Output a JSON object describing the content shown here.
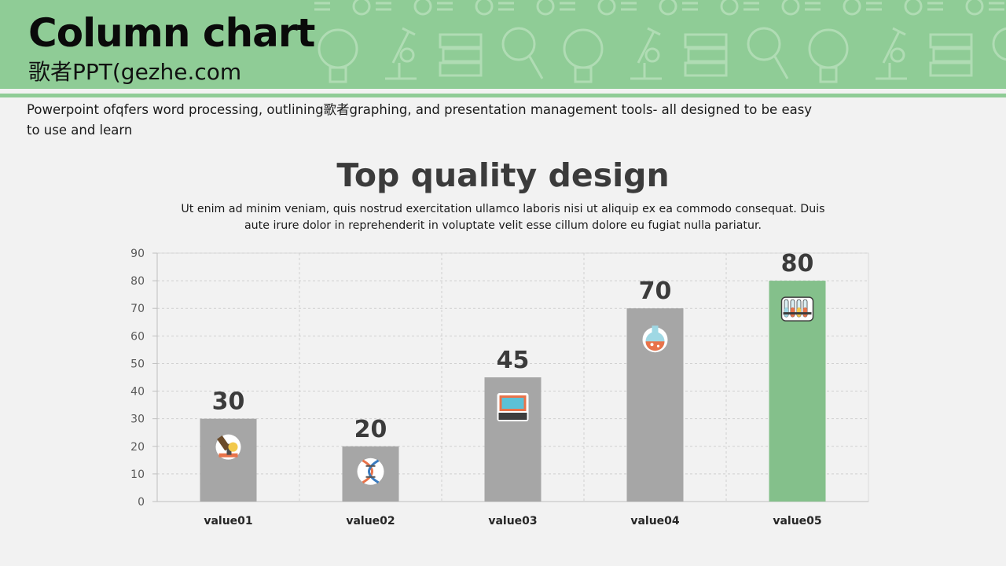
{
  "slide": {
    "title": "Column chart",
    "subtitle": "歌者PPT(gezhe.com",
    "intro": "Powerpoint ofqfers word processing, outlining歌者graphing, and presentation management tools- all designed to be easy to use and learn"
  },
  "colors": {
    "banner": "#8fcc96",
    "bar_default": "#a6a6a6",
    "bar_highlight": "#84c08b",
    "background": "#f2f2f2"
  },
  "chart_data": {
    "type": "bar",
    "title": "Top quality design",
    "subtitle": "Ut enim ad minim veniam, quis nostrud exercitation ullamco laboris nisi ut aliquip ex ea commodo consequat. Duis aute irure dolor in reprehenderit in voluptate velit esse cillum dolore eu fugiat nulla pariatur.",
    "categories": [
      "value01",
      "value02",
      "value03",
      "value04",
      "value05"
    ],
    "values": [
      30,
      20,
      45,
      70,
      80
    ],
    "data_labels": [
      "30",
      "20",
      "45",
      "70",
      "80"
    ],
    "ylim": [
      0,
      90
    ],
    "yticks": [
      "0",
      "10",
      "20",
      "30",
      "40",
      "50",
      "60",
      "70",
      "80",
      "90"
    ],
    "highlight_index": 4,
    "grid": true,
    "bar_icons": [
      "microscope-icon",
      "dna-icon",
      "computer-icon",
      "flask-icon",
      "test-tubes-icon"
    ],
    "xlabel": "",
    "ylabel": ""
  }
}
